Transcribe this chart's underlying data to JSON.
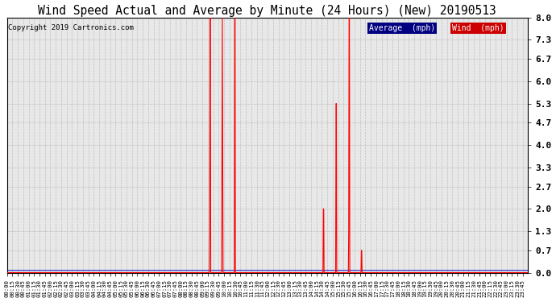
{
  "title": "Wind Speed Actual and Average by Minute (24 Hours) (New) 20190513",
  "copyright": "Copyright 2019 Cartronics.com",
  "ylabel_ticks": [
    0.0,
    0.7,
    1.3,
    2.0,
    2.7,
    3.3,
    4.0,
    4.7,
    5.3,
    6.0,
    6.7,
    7.3,
    8.0
  ],
  "ylim": [
    0.0,
    8.0
  ],
  "wind_color": "#ff0000",
  "avg_color": "#0000cc",
  "bg_color": "#ffffff",
  "plot_bg_color": "#e8e8e8",
  "grid_color": "#bbbbbb",
  "legend_avg_bg": "#000080",
  "legend_wind_bg": "#cc0000",
  "legend_avg_text": "Average  (mph)",
  "legend_wind_text": "Wind  (mph)",
  "avg_line_value": 0.07,
  "spike_minutes": [
    559,
    560,
    561,
    562,
    563,
    593,
    594,
    595,
    596,
    597,
    628,
    629,
    630,
    631,
    874,
    875,
    909,
    910,
    944,
    945,
    946,
    979,
    980,
    981
  ],
  "spike_values": [
    0.0,
    1.3,
    8.0,
    8.0,
    0.0,
    0.0,
    4.0,
    8.0,
    4.0,
    0.0,
    0.0,
    8.0,
    8.0,
    0.0,
    2.0,
    2.0,
    5.3,
    5.3,
    1.3,
    8.0,
    8.0,
    0.7,
    0.7,
    0.0
  ]
}
